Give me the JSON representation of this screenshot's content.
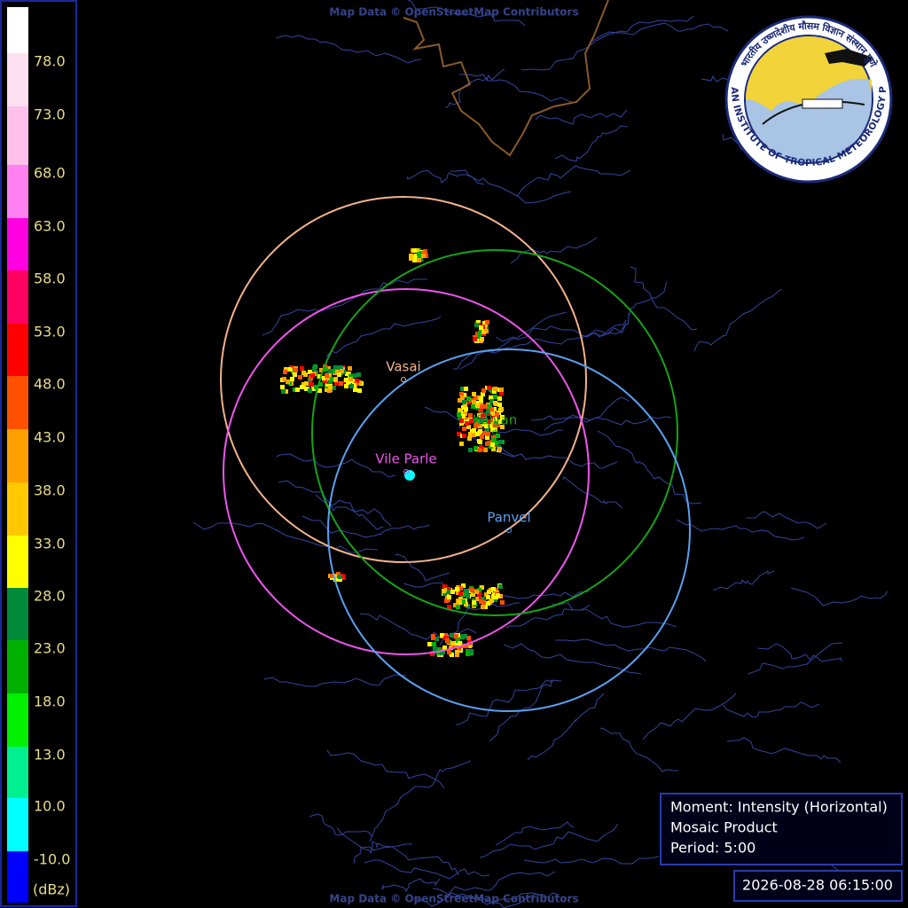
{
  "colorbar": {
    "unit": "(dBz)",
    "labels": [
      "78.0",
      "73.0",
      "68.0",
      "63.0",
      "58.0",
      "53.0",
      "48.0",
      "43.0",
      "38.0",
      "33.0",
      "28.0",
      "23.0",
      "18.0",
      "13.0",
      "10.0",
      "-10.0"
    ],
    "colors": [
      "#ffffff",
      "#ffe0f0",
      "#ffc0ec",
      "#ff80f0",
      "#ff00e0",
      "#ff0060",
      "#ff0000",
      "#ff5000",
      "#ffa000",
      "#ffc800",
      "#ffff00",
      "#008a3a",
      "#00b000",
      "#00f000",
      "#00f090",
      "#00ffff",
      "#0000ff"
    ]
  },
  "stations": [
    {
      "name": "Vasai",
      "color": "#f4b38c"
    },
    {
      "name": "Vile Parle",
      "color": "#ee55ee"
    },
    {
      "name": "Kalyan",
      "color": "#17a317"
    },
    {
      "name": "Panvel",
      "color": "#5aa0f0"
    }
  ],
  "info": {
    "moment": "Moment: Intensity (Horizontal)",
    "product": "Mosaic Product",
    "period": "Period: 5:00"
  },
  "timestamp": "2026-08-28 06:15:00",
  "attribution": {
    "top": "Map Data © OpenStreetMap Contributors",
    "bottom": "Map Data © OpenStreetMap Contributors"
  },
  "logo": {
    "english": "INDIAN INSTITUTE OF TROPICAL METEOROLOGY PUNE",
    "hindi": "भारतीय उष्णदेशीय मौसम विज्ञान संस्थान पुणे"
  }
}
